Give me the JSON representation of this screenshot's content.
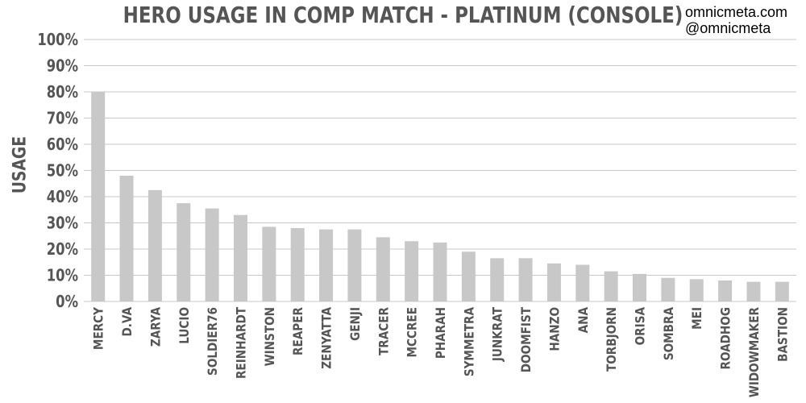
{
  "watermark": {
    "line1": "omnicmeta.com",
    "line2": "@omnicmeta"
  },
  "chart_data": {
    "type": "bar",
    "title": "HERO USAGE IN COMP MATCH - PLATINUM (CONSOLE)",
    "xlabel": "",
    "ylabel": "USAGE",
    "ylim": [
      0,
      100
    ],
    "yticks": [
      "0%",
      "10%",
      "20%",
      "30%",
      "40%",
      "50%",
      "60%",
      "70%",
      "80%",
      "90%",
      "100%"
    ],
    "grid": true,
    "bar_color": "#c8c8c8",
    "categories": [
      "MERCY",
      "D.VA",
      "ZARYA",
      "LUCIO",
      "SOLDIER76",
      "REINHARDT",
      "WINSTON",
      "REAPER",
      "ZENYATTA",
      "GENJI",
      "TRACER",
      "MCCREE",
      "PHARAH",
      "SYMMETRA",
      "JUNKRAT",
      "DOOMFIST",
      "HANZO",
      "ANA",
      "TORBJORN",
      "ORISA",
      "SOMBRA",
      "MEI",
      "ROADHOG",
      "WIDOWMAKER",
      "BASTION"
    ],
    "values": [
      80,
      48,
      42.5,
      37.5,
      35.5,
      33,
      28.5,
      28,
      27.5,
      27.5,
      24.5,
      23,
      22.5,
      19,
      16.5,
      16.5,
      14.5,
      14,
      11.5,
      10.5,
      9,
      8.5,
      8,
      7.5,
      7.5
    ]
  }
}
